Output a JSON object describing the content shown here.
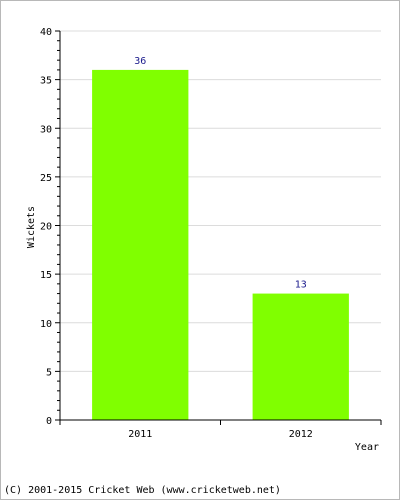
{
  "chart_data": {
    "type": "bar",
    "categories": [
      "2011",
      "2012"
    ],
    "values": [
      36,
      13
    ],
    "data_labels": [
      "36",
      "13"
    ],
    "xlabel": "Year",
    "ylabel": "Wickets",
    "ylim": [
      0,
      40
    ],
    "yticks": [
      "0",
      "5",
      "10",
      "15",
      "20",
      "25",
      "30",
      "35",
      "40"
    ],
    "grid": true,
    "bar_color": "#80ff00",
    "grid_color": "#dcdcdc"
  },
  "footer": {
    "copyright": "(C) 2001-2015 Cricket Web (www.cricketweb.net)"
  }
}
